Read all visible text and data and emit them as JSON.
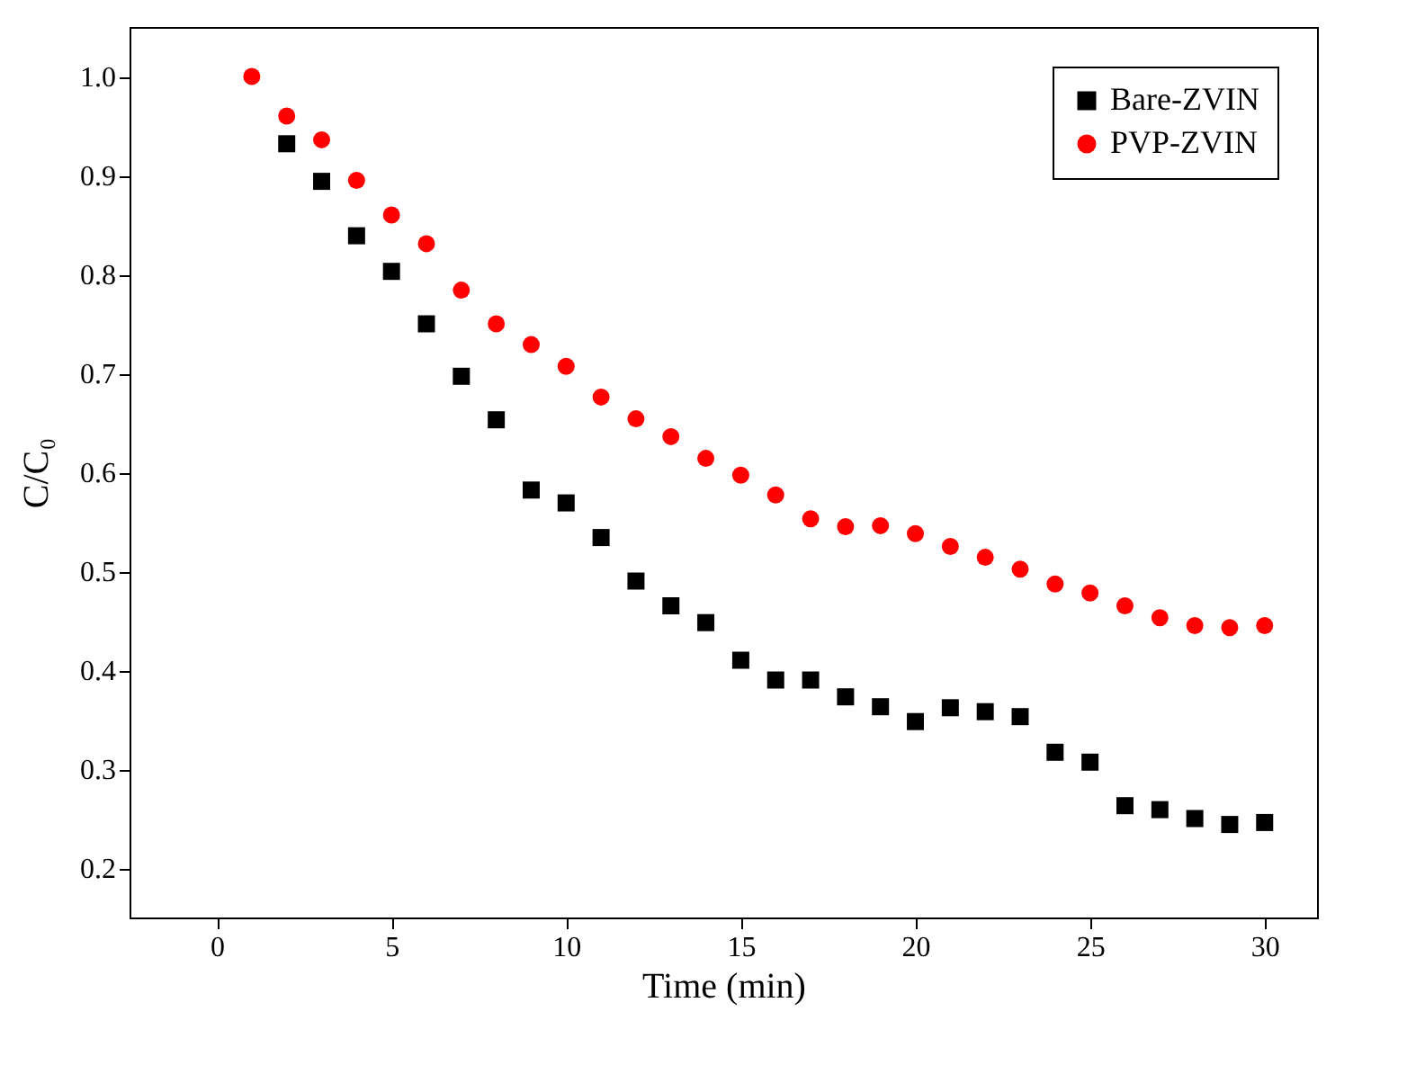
{
  "chart_data": {
    "type": "scatter",
    "xlabel": "Time (min)",
    "ylabel": "C/C₀",
    "xlim": [
      -2.5,
      31.5
    ],
    "xticks": [
      0,
      5,
      10,
      15,
      20,
      25,
      30
    ],
    "ylim": [
      0.15,
      1.05
    ],
    "yticks": [
      0.2,
      0.3,
      0.4,
      0.5,
      0.6,
      0.7,
      0.8,
      0.9,
      {
        "value": 1,
        "label": "1.0"
      }
    ],
    "x": [
      1,
      2,
      3,
      4,
      5,
      6,
      7,
      8,
      9,
      10,
      11,
      12,
      13,
      14,
      15,
      16,
      17,
      18,
      19,
      20,
      21,
      22,
      23,
      24,
      25,
      26,
      27,
      28,
      29,
      30
    ],
    "legend": "top right",
    "grid": false,
    "series": [
      {
        "name": "Bare-ZVIN",
        "color": "#000000",
        "marker": "square",
        "values": [
          null,
          0.932,
          0.894,
          0.839,
          0.803,
          0.75,
          0.697,
          0.653,
          0.582,
          0.569,
          0.534,
          0.49,
          0.465,
          0.448,
          0.41,
          0.39,
          0.39,
          0.373,
          0.363,
          0.348,
          0.362,
          0.358,
          0.353,
          0.317,
          0.307,
          0.263,
          0.259,
          0.25,
          0.244,
          0.246
        ]
      },
      {
        "name": "PVP-ZVIN",
        "color": "#ff0000",
        "marker": "circle",
        "values": [
          1.0,
          0.96,
          0.936,
          0.895,
          0.86,
          0.831,
          0.784,
          0.75,
          0.729,
          0.707,
          0.676,
          0.654,
          0.636,
          0.614,
          0.597,
          0.577,
          0.553,
          0.545,
          0.546,
          0.538,
          0.525,
          0.514,
          0.502,
          0.487,
          0.478,
          0.465,
          0.453,
          0.445,
          0.443,
          0.445
        ]
      }
    ]
  }
}
